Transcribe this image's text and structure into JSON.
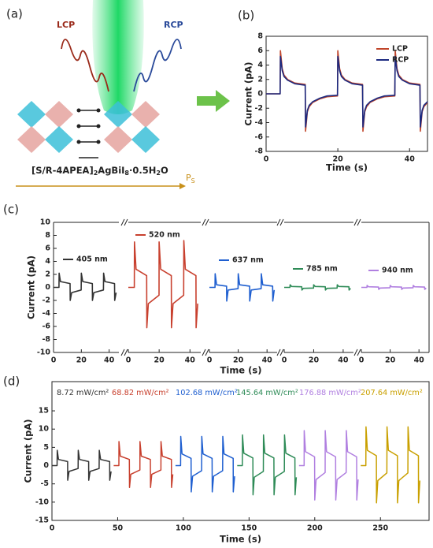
{
  "panel_a": {
    "label": "(a)",
    "lcp": "LCP",
    "rcp": "RCP",
    "formula": [
      "[S/R-4APEA]",
      "2",
      "AgBiI",
      "8",
      "·0.5H",
      "2",
      "O"
    ],
    "polarization": [
      "P",
      "S"
    ]
  },
  "chart_data": [
    {
      "type": "line",
      "label": "(b)",
      "xlabel": "Time (s)",
      "ylabel": "Current (pA)",
      "xlim": [
        0,
        45
      ],
      "xticks": [
        0,
        20,
        40
      ],
      "ylim": [
        -8,
        8
      ],
      "yticks": [
        -8,
        -6,
        -4,
        -2,
        0,
        2,
        4,
        6,
        8
      ],
      "x": [
        0,
        3.9,
        4,
        4.5,
        5,
        6,
        8,
        10.9,
        11,
        11.5,
        12,
        13,
        15,
        17,
        19.9,
        20,
        20.5,
        21,
        22,
        24,
        26.9,
        27,
        27.5,
        28,
        29,
        31,
        33,
        35.9,
        36,
        36.5,
        37,
        38,
        40,
        42.9,
        43,
        43.5,
        44,
        45
      ],
      "series": [
        {
          "name": "LCP",
          "color": "#c0452a",
          "values": [
            0,
            0,
            6,
            3.5,
            2.6,
            2,
            1.5,
            1.3,
            -5.2,
            -2.5,
            -1.8,
            -1.2,
            -0.7,
            -0.4,
            -0.3,
            6,
            3.5,
            2.6,
            2,
            1.5,
            1.3,
            -5.2,
            -2.5,
            -1.8,
            -1.2,
            -0.7,
            -0.4,
            -0.3,
            6,
            3.5,
            2.6,
            2,
            1.5,
            1.3,
            -5.2,
            -2.5,
            -1.8,
            -1.2
          ]
        },
        {
          "name": "RCP",
          "color": "#1c2a80",
          "values": [
            0,
            0,
            5.2,
            3.2,
            2.4,
            1.9,
            1.4,
            1.2,
            -4.6,
            -2.3,
            -1.6,
            -1.1,
            -0.6,
            -0.3,
            -0.2,
            5.2,
            3.2,
            2.4,
            1.9,
            1.4,
            1.2,
            -4.6,
            -2.3,
            -1.6,
            -1.1,
            -0.6,
            -0.3,
            -0.2,
            5.2,
            3.2,
            2.4,
            1.9,
            1.4,
            1.2,
            -4.6,
            -2.3,
            -1.6,
            -1.1
          ]
        }
      ]
    },
    {
      "type": "line",
      "label": "(c)",
      "xlabel": "Time (s)",
      "ylabel": "Current (pA)",
      "xlim": [
        0,
        47
      ],
      "xticks": [
        0,
        20,
        40
      ],
      "ylim": [
        -10,
        10
      ],
      "yticks": [
        -10,
        -8,
        -6,
        -4,
        -2,
        0,
        2,
        4,
        6,
        8,
        10
      ],
      "x": [
        0,
        3.9,
        4,
        5,
        11.9,
        12,
        13,
        19.9,
        20,
        21,
        27.9,
        28,
        29,
        35.9,
        36,
        37,
        43.9,
        44,
        45
      ],
      "series": [
        {
          "name": "405 nm",
          "color": "#333333",
          "values": [
            0,
            0,
            2.2,
            0.9,
            0.6,
            -2,
            -0.8,
            -0.4,
            2.2,
            0.9,
            0.6,
            -2,
            -0.8,
            -0.4,
            2.2,
            0.9,
            0.6,
            -2,
            -0.8
          ]
        },
        {
          "name": "520 nm",
          "color": "#c8402e",
          "values": [
            0,
            0,
            7,
            2.8,
            1.8,
            -6.2,
            -2.5,
            -1.2,
            7,
            2.8,
            1.8,
            -6.2,
            -2.5,
            -1.2,
            7.2,
            2.8,
            1.8,
            -6.2,
            -2.5
          ]
        },
        {
          "name": "637 nm",
          "color": "#1f5fd0",
          "values": [
            0,
            0,
            2.1,
            0.4,
            0.2,
            -2.1,
            -0.4,
            -0.2,
            2.1,
            0.4,
            0.2,
            -2.1,
            -0.4,
            -0.2,
            2.1,
            0.4,
            0.2,
            -2.1,
            -0.4
          ]
        },
        {
          "name": "785 nm",
          "color": "#2e8b57",
          "values": [
            0,
            0,
            0.4,
            0.15,
            0.1,
            -0.4,
            -0.15,
            -0.1,
            0.4,
            0.15,
            0.1,
            -0.4,
            -0.15,
            -0.1,
            0.4,
            0.15,
            0.1,
            -0.4,
            -0.15
          ]
        },
        {
          "name": "940 nm",
          "color": "#b07fe0",
          "values": [
            0,
            0,
            0.3,
            0.1,
            0.05,
            -0.3,
            -0.1,
            -0.05,
            0.3,
            0.1,
            0.05,
            -0.3,
            -0.1,
            -0.05,
            0.3,
            0.1,
            0.05,
            -0.3,
            -0.1
          ]
        }
      ]
    },
    {
      "type": "line",
      "label": "(d)",
      "xlabel": "Time (s)",
      "ylabel": "Current (pA)",
      "xlim": [
        0,
        287
      ],
      "xticks": [
        0,
        50,
        100,
        150,
        200,
        250
      ],
      "ylim": [
        -15,
        23
      ],
      "yticks": [
        -15,
        -10,
        -5,
        0,
        5,
        10,
        15
      ],
      "series": [
        {
          "name": "8.72 mW/cm²",
          "color": "#333333",
          "x": [
            0,
            3.9,
            4,
            5,
            11.9,
            12,
            13,
            19.9,
            20,
            21,
            27.9,
            28,
            29,
            35.9,
            36,
            37,
            43.9,
            44,
            45
          ],
          "values": [
            0,
            0,
            4.2,
            1.7,
            1.1,
            -4,
            -1.6,
            -0.8,
            4.2,
            1.7,
            1.1,
            -4,
            -1.6,
            -0.8,
            4.2,
            1.7,
            1.1,
            -4,
            -1.6
          ]
        },
        {
          "name": "68.82 mW/cm²",
          "color": "#c8402e",
          "x": [
            47,
            50.9,
            51,
            52,
            58.9,
            59,
            60,
            66.9,
            67,
            68,
            74.9,
            75,
            76,
            82.9,
            83,
            84,
            90.9,
            91,
            92
          ],
          "values": [
            0,
            0,
            6.6,
            2.6,
            1.7,
            -6,
            -2.4,
            -1.2,
            6.6,
            2.6,
            1.7,
            -6,
            -2.4,
            -1.2,
            6.6,
            2.6,
            1.7,
            -6,
            -2.4
          ]
        },
        {
          "name": "102.68 mW/cm²",
          "color": "#1f5fd0",
          "x": [
            94,
            97.9,
            98,
            99,
            105.9,
            106,
            107,
            113.9,
            114,
            115,
            121.9,
            122,
            123,
            129.9,
            130,
            131,
            137.9,
            138,
            139
          ],
          "values": [
            0,
            0,
            8,
            3.2,
            2,
            -7.2,
            -2.9,
            -1.4,
            8,
            3.2,
            2,
            -7.2,
            -2.9,
            -1.4,
            8,
            3.2,
            2,
            -7.2,
            -2.9
          ]
        },
        {
          "name": "145.64 mW/cm²",
          "color": "#2e8b57",
          "x": [
            141,
            144.9,
            145,
            146,
            152.9,
            153,
            154,
            160.9,
            161,
            162,
            168.9,
            169,
            170,
            176.9,
            177,
            178,
            184.9,
            185,
            186
          ],
          "values": [
            0,
            0,
            8.4,
            3.4,
            2.1,
            -8,
            -3.2,
            -1.6,
            8.4,
            3.4,
            2.1,
            -8,
            -3.2,
            -1.6,
            8.4,
            3.4,
            2.1,
            -8,
            -3.2
          ]
        },
        {
          "name": "176.88 mW/cm²",
          "color": "#b07fe0",
          "x": [
            188,
            191.9,
            192,
            193,
            199.9,
            200,
            201,
            207.9,
            208,
            209,
            215.9,
            216,
            217,
            223.9,
            224,
            225,
            231.9,
            232,
            233
          ],
          "values": [
            0,
            0,
            9.6,
            3.8,
            2.4,
            -9.4,
            -3.8,
            -1.9,
            9.6,
            3.8,
            2.4,
            -9.4,
            -3.8,
            -1.9,
            9.6,
            3.8,
            2.4,
            -9.4,
            -3.8
          ]
        },
        {
          "name": "207.64 mW/cm²",
          "color": "#c9a000",
          "x": [
            235,
            238.9,
            239,
            240,
            246.9,
            247,
            248,
            254.9,
            255,
            256,
            262.9,
            263,
            264,
            270.9,
            271,
            272,
            278.9,
            279,
            280
          ],
          "values": [
            0,
            0,
            10.6,
            4.2,
            2.7,
            -10.2,
            -4.1,
            -2,
            10.6,
            4.2,
            2.7,
            -10.2,
            -4.1,
            -2,
            10.6,
            4.2,
            2.7,
            -10.2,
            -4.1
          ]
        }
      ]
    }
  ]
}
